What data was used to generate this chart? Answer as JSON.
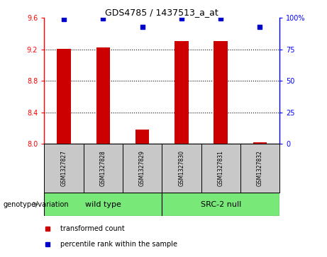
{
  "title": "GDS4785 / 1437513_a_at",
  "samples": [
    "GSM1327827",
    "GSM1327828",
    "GSM1327829",
    "GSM1327830",
    "GSM1327831",
    "GSM1327832"
  ],
  "red_values": [
    9.21,
    9.225,
    8.18,
    9.305,
    9.305,
    8.02
  ],
  "blue_values": [
    99.0,
    99.5,
    93.0,
    99.5,
    99.5,
    93.0
  ],
  "ylim": [
    8.0,
    9.6
  ],
  "ylim_right": [
    0,
    100
  ],
  "yticks_left": [
    8.0,
    8.4,
    8.8,
    9.2,
    9.6
  ],
  "yticks_right": [
    0,
    25,
    50,
    75,
    100
  ],
  "bar_color": "#cc0000",
  "dot_color": "#0000cc",
  "bar_width": 0.35,
  "sample_box_color": "#c8c8c8",
  "group_box_color": "#78e878",
  "legend_red_label": "transformed count",
  "legend_blue_label": "percentile rank within the sample",
  "group_label": "genotype/variation",
  "wild_type_label": "wild type",
  "src2_null_label": "SRC-2 null"
}
